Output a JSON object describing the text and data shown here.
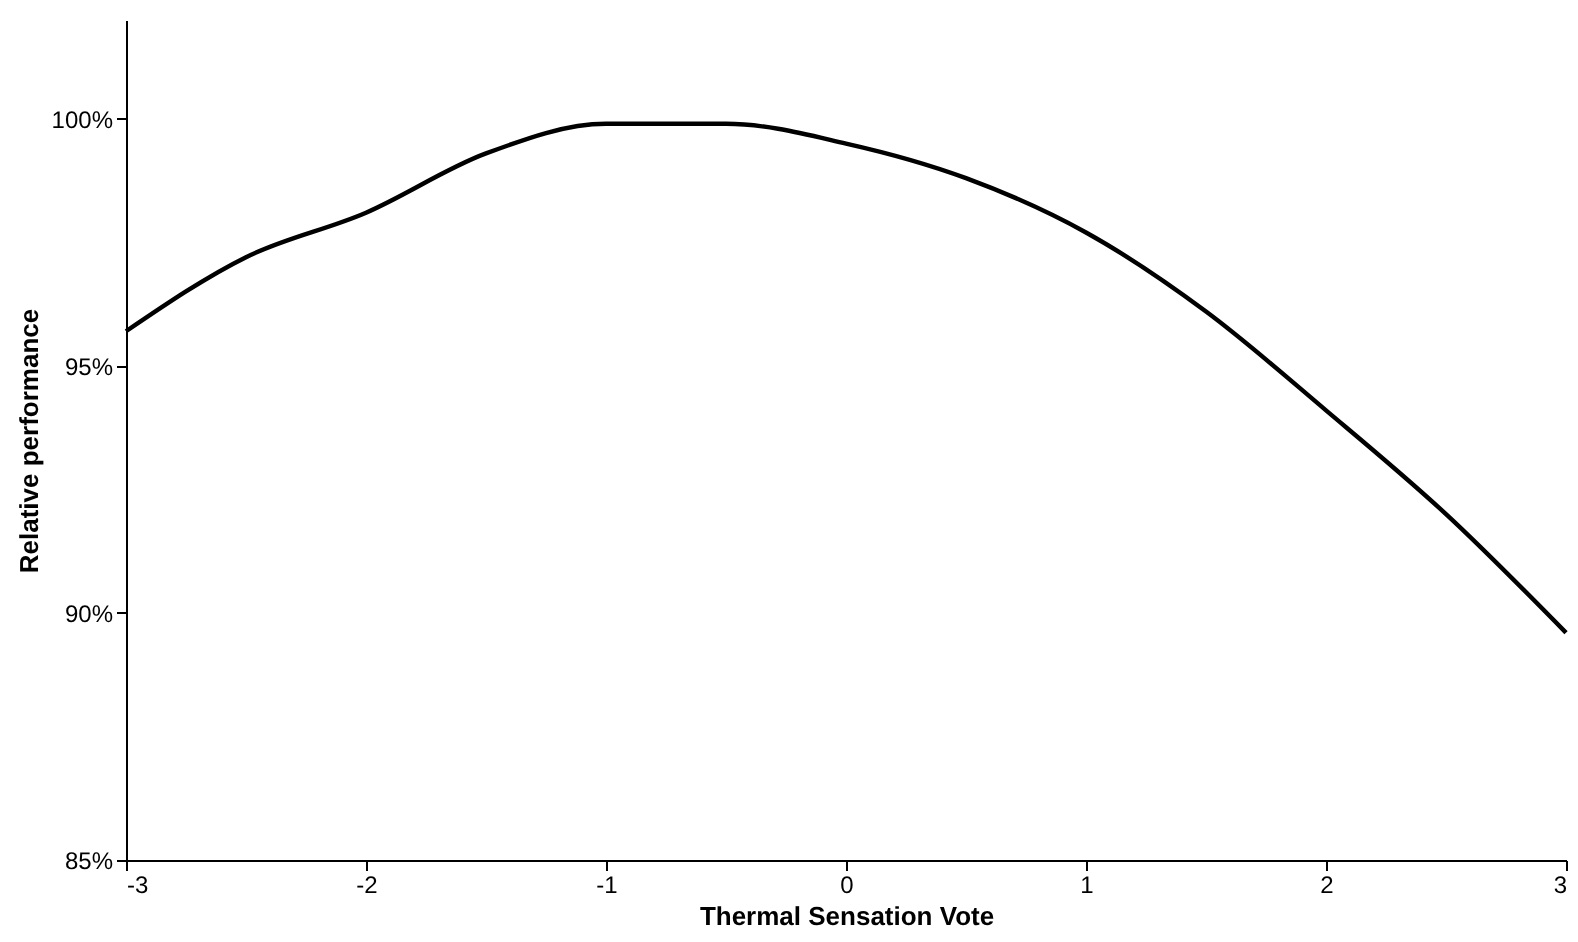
{
  "chart_data": {
    "type": "line",
    "xlabel": "Thermal Sensation Vote",
    "ylabel": "Relative performance",
    "x": [
      -3,
      -2.5,
      -2,
      -1.5,
      -1,
      -0.5,
      0,
      0.5,
      1,
      1.5,
      2,
      2.5,
      3
    ],
    "series": [
      {
        "color": "#000000",
        "values": [
          95.7,
          97.2,
          98.1,
          99.3,
          99.9,
          99.9,
          99.5,
          98.8,
          97.7,
          96.1,
          94.1,
          92.0,
          89.6
        ]
      }
    ],
    "xlim": [
      -3,
      3
    ],
    "xticks": [
      -3,
      -2,
      -1,
      0,
      1,
      2,
      3
    ],
    "ylim": [
      85,
      102
    ],
    "yticks": [
      {
        "value": 85,
        "label": "85%"
      },
      {
        "value": 90,
        "label": "90%"
      },
      {
        "value": 95,
        "label": "95%"
      },
      {
        "value": 100,
        "label": "100%"
      }
    ],
    "grid": false,
    "marker": "none",
    "line_style": "solid"
  }
}
